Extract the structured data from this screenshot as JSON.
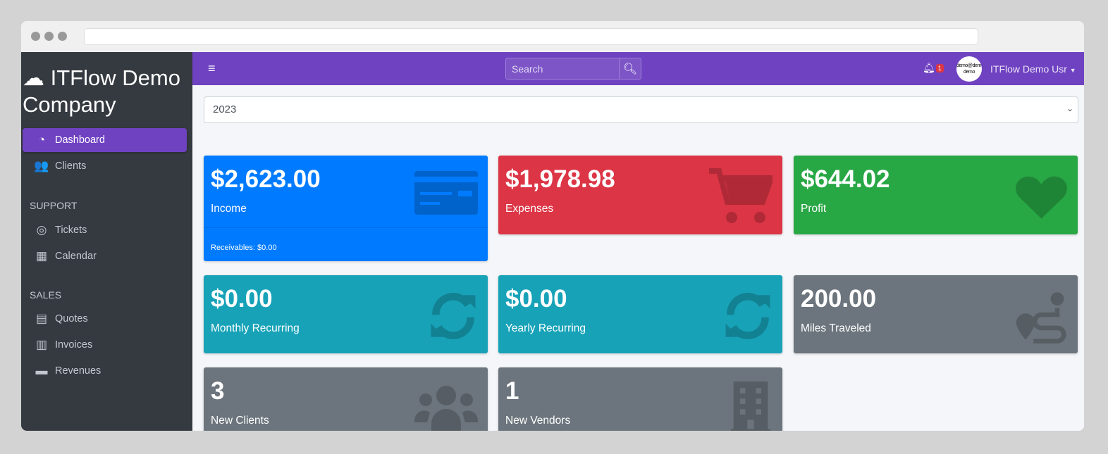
{
  "browser": {
    "url": ""
  },
  "sidebar": {
    "brand": "ITFlow Demo Company",
    "items": [
      {
        "label": "Dashboard",
        "icon": "gauge-icon"
      },
      {
        "label": "Clients",
        "icon": "users-icon"
      }
    ],
    "support_header": "SUPPORT",
    "support": [
      {
        "label": "Tickets",
        "icon": "life-ring-icon"
      },
      {
        "label": "Calendar",
        "icon": "calendar-icon"
      }
    ],
    "sales_header": "SALES",
    "sales": [
      {
        "label": "Quotes",
        "icon": "file-icon"
      },
      {
        "label": "Invoices",
        "icon": "invoice-icon"
      },
      {
        "label": "Revenues",
        "icon": "credit-card-icon"
      }
    ]
  },
  "topbar": {
    "search_placeholder": "Search",
    "notifications": "1",
    "avatar_text": "demo@demo demo",
    "user": "ITFlow Demo Usr"
  },
  "year_select": "2023",
  "cards": [
    {
      "value": "$2,623.00",
      "label": "Income",
      "footer": "Receivables: $0.00",
      "color": "#007bff"
    },
    {
      "value": "$1,978.98",
      "label": "Expenses",
      "color": "#dc3545"
    },
    {
      "value": "$644.02",
      "label": "Profit",
      "color": "#28a745"
    },
    {
      "value": "$0.00",
      "label": "Monthly Recurring",
      "color": "#17a2b8"
    },
    {
      "value": "$0.00",
      "label": "Yearly Recurring",
      "color": "#17a2b8"
    },
    {
      "value": "200.00",
      "label": "Miles Traveled",
      "color": "#6c757d"
    },
    {
      "value": "3",
      "label": "New Clients",
      "color": "#6c757d"
    },
    {
      "value": "1",
      "label": "New Vendors",
      "color": "#6c757d"
    }
  ]
}
